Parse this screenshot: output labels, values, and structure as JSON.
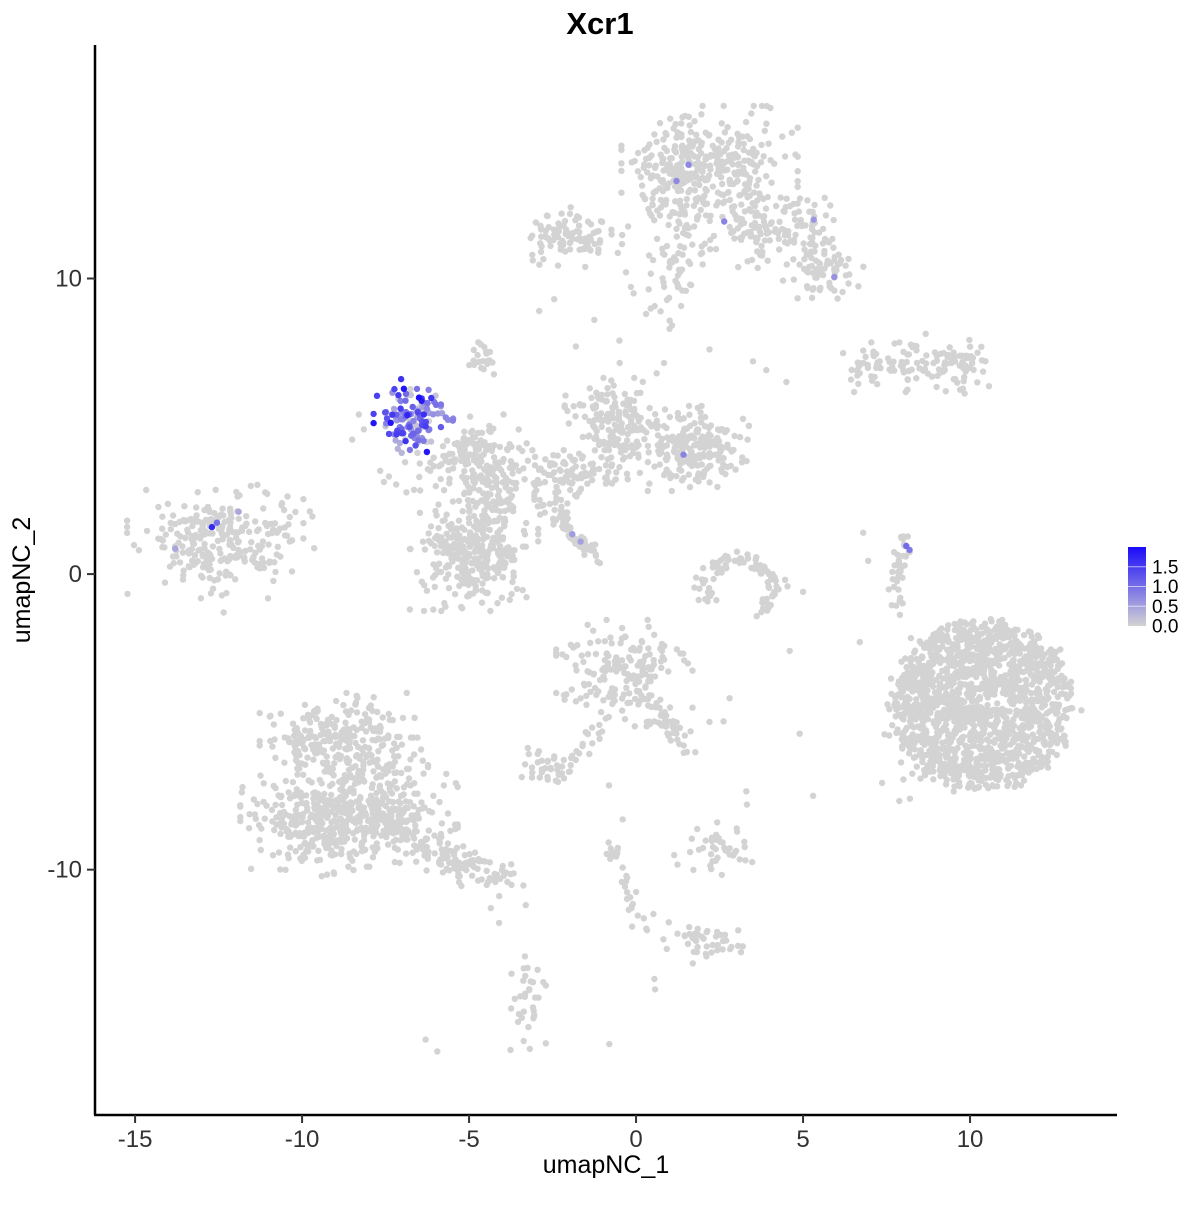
{
  "title": "Xcr1",
  "colors": {
    "background": "#FFFFFF",
    "point_low": "#D3D3D3",
    "point_high": "#1A0BFA",
    "axis_line": "#000000",
    "tick_text": "#333333",
    "title_text": "#000000"
  },
  "chart_data": {
    "type": "scatter",
    "title": "Xcr1",
    "xlabel": "umapNC_1",
    "ylabel": "umapNC_2",
    "x_ticks": [
      -15,
      -10,
      -5,
      0,
      5,
      10
    ],
    "y_ticks": [
      -10,
      0,
      10
    ],
    "xlim": [
      -16.2,
      14.4
    ],
    "ylim": [
      -18.3,
      17.9
    ],
    "grid": false,
    "point_radius_px": 3.2,
    "legend": {
      "position": "right",
      "ticks": [
        0.0,
        0.5,
        1.0,
        1.5
      ],
      "vmax": 2.0,
      "low_color": "#D3D3D3",
      "high_color": "#1A0BFA"
    },
    "grey_blobs": [
      {
        "name": "top-cluster-main",
        "cx": 2.2,
        "cy": 13.8,
        "sx": 1.1,
        "sy": 0.85,
        "n": 300
      },
      {
        "name": "top-cluster-left-edge",
        "cx": 1.0,
        "cy": 13.4,
        "sx": 0.45,
        "sy": 0.7,
        "n": 70
      },
      {
        "name": "top-cluster-right",
        "cx": 4.1,
        "cy": 11.8,
        "sx": 0.95,
        "sy": 0.6,
        "n": 130
      },
      {
        "name": "top-cluster-arm-se",
        "cx": 5.6,
        "cy": 10.3,
        "sx": 0.6,
        "sy": 0.55,
        "n": 70
      },
      {
        "name": "top-cluster-arm-down",
        "cx": 1.4,
        "cy": 11.2,
        "sx": 0.45,
        "sy": 0.9,
        "n": 55
      },
      {
        "name": "top-cluster-drips",
        "cx": 0.9,
        "cy": 9.4,
        "sx": 0.5,
        "sy": 0.5,
        "n": 18
      },
      {
        "name": "upper-left-elongated",
        "cx": -1.95,
        "cy": 11.4,
        "sx": 0.7,
        "sy": 0.42,
        "n": 95
      },
      {
        "name": "right-lobe-1",
        "cx": 7.35,
        "cy": 7.0,
        "sx": 0.55,
        "sy": 0.35,
        "n": 55
      },
      {
        "name": "right-lobe-2",
        "cx": 9.3,
        "cy": 7.05,
        "sx": 0.65,
        "sy": 0.45,
        "n": 80
      },
      {
        "name": "small-blob-above-middle",
        "cx": -4.55,
        "cy": 7.35,
        "sx": 0.28,
        "sy": 0.38,
        "n": 20
      },
      {
        "name": "middle-left-lobe",
        "cx": -4.6,
        "cy": 3.6,
        "sx": 0.65,
        "sy": 0.75,
        "n": 150
      },
      {
        "name": "middle-left-arm-down",
        "cx": -4.25,
        "cy": 2.25,
        "sx": 0.4,
        "sy": 0.6,
        "n": 60
      },
      {
        "name": "middle-bridge",
        "cx": -2.0,
        "cy": 3.35,
        "sx": 0.7,
        "sy": 0.35,
        "n": 85
      },
      {
        "name": "middle-bridge-low",
        "cx": -2.35,
        "cy": 2.25,
        "sx": 0.35,
        "sy": 0.25,
        "n": 18
      },
      {
        "name": "middle-fan",
        "cx": -0.65,
        "cy": 5.1,
        "sx": 0.62,
        "sy": 0.85,
        "n": 180
      },
      {
        "name": "middle-right-cluster",
        "cx": 1.7,
        "cy": 4.25,
        "sx": 0.7,
        "sy": 0.6,
        "n": 210
      },
      {
        "name": "center-left-round",
        "cx": -4.85,
        "cy": 0.55,
        "sx": 0.8,
        "sy": 0.75,
        "n": 300
      },
      {
        "name": "far-left-cluster",
        "cx": -12.6,
        "cy": 1.1,
        "sx": 1.1,
        "sy": 0.8,
        "n": 250
      },
      {
        "name": "far-left-arm",
        "cx": -10.4,
        "cy": 1.55,
        "sx": 0.5,
        "sy": 0.35,
        "n": 16
      },
      {
        "name": "bottom-left-top-lobe",
        "cx": -8.75,
        "cy": -5.7,
        "sx": 1.05,
        "sy": 0.7,
        "n": 260
      },
      {
        "name": "bottom-left-main-w",
        "cx": -9.45,
        "cy": -8.3,
        "sx": 1.0,
        "sy": 0.8,
        "n": 330
      },
      {
        "name": "bottom-left-main-e",
        "cx": -7.5,
        "cy": -8.1,
        "sx": 0.9,
        "sy": 0.75,
        "n": 250
      },
      {
        "name": "center-bottom-cluster",
        "cx": -0.35,
        "cy": -3.35,
        "sx": 0.85,
        "sy": 0.75,
        "n": 175
      },
      {
        "name": "small-blob-sw",
        "cx": -2.7,
        "cy": -6.55,
        "sx": 0.3,
        "sy": 0.28,
        "n": 28
      },
      {
        "name": "small-cluster-s1",
        "cx": 2.4,
        "cy": -9.35,
        "sx": 0.55,
        "sy": 0.35,
        "n": 40
      },
      {
        "name": "small-cluster-s2",
        "cx": 2.1,
        "cy": -12.4,
        "sx": 0.55,
        "sy": 0.33,
        "n": 45
      },
      {
        "name": "bottom-vertical-cluster",
        "cx": -3.35,
        "cy": -14.3,
        "sx": 0.27,
        "sy": 0.75,
        "n": 34
      },
      {
        "name": "br-disc-left-fringe",
        "cx": 8.35,
        "cy": -5.1,
        "sx": 0.55,
        "sy": 1.3,
        "n": 65
      },
      {
        "name": "grey-below-xcr1-cluster",
        "cx": -5.9,
        "cy": 3.95,
        "sx": 0.5,
        "sy": 0.3,
        "n": 16
      },
      {
        "name": "grey-sw-of-xcr1-cluster",
        "cx": -7.0,
        "cy": 3.1,
        "sx": 0.55,
        "sy": 0.45,
        "n": 10
      },
      {
        "name": "grey-inside-xcr1-cluster",
        "cx": -6.85,
        "cy": 5.3,
        "sx": 0.45,
        "sy": 0.5,
        "n": 14
      }
    ],
    "grey_segments": [
      {
        "name": "xcr1-grey-tail",
        "x1": -5.35,
        "y1": 4.55,
        "x2": -4.45,
        "y2": 4.35,
        "w": 0.18,
        "n": 20
      },
      {
        "name": "diagonal-streak",
        "x1": -2.45,
        "y1": 1.95,
        "x2": -1.1,
        "y2": 0.55,
        "w": 0.12,
        "n": 48
      },
      {
        "name": "bottom-left-tail",
        "x1": -6.45,
        "y1": -9.2,
        "x2": -3.95,
        "y2": -10.35,
        "w": 0.3,
        "n": 110
      },
      {
        "name": "center-bottom-arm",
        "x1": 0.55,
        "y1": -4.3,
        "x2": 1.3,
        "y2": -5.7,
        "w": 0.22,
        "n": 45
      },
      {
        "name": "center-bottom-trail",
        "x1": -1.0,
        "y1": -5.05,
        "x2": -2.35,
        "y2": -7.0,
        "w": 0.14,
        "n": 26
      },
      {
        "name": "chain-upper",
        "x1": -0.9,
        "y1": -9.0,
        "x2": -0.25,
        "y2": -10.6,
        "w": 0.13,
        "n": 16
      },
      {
        "name": "chain-lower",
        "x1": -0.25,
        "y1": -10.6,
        "x2": 0.2,
        "y2": -12.05,
        "w": 0.13,
        "n": 14
      },
      {
        "name": "right-streak",
        "x1": 8.15,
        "y1": 1.45,
        "x2": 7.75,
        "y2": -0.35,
        "w": 0.12,
        "n": 34
      },
      {
        "name": "right-streak-drips",
        "x1": 7.8,
        "y1": -0.5,
        "x2": 7.95,
        "y2": -1.3,
        "w": 0.1,
        "n": 6
      }
    ],
    "grey_ring": {
      "name": "horseshoe-cluster",
      "cx": 3.1,
      "cy": -0.45,
      "rx": 1.05,
      "ry": 0.95,
      "start_deg": -60,
      "span_deg": 280,
      "jitter": 0.16,
      "n": 90
    },
    "grey_disc": {
      "name": "bottom-right-disc",
      "cx": 10.4,
      "cy": -4.4,
      "rx": 2.7,
      "ry": 2.85,
      "n": 1500
    },
    "grey_singles": [
      [
        -2.9,
        8.9
      ],
      [
        -2.45,
        9.3
      ],
      [
        -1.25,
        8.6
      ],
      [
        -0.5,
        7.9
      ],
      [
        -1.8,
        7.7
      ],
      [
        1.0,
        8.3
      ],
      [
        0.3,
        8.8
      ],
      [
        3.5,
        7.2
      ],
      [
        4.5,
        6.5
      ],
      [
        3.9,
        6.9
      ],
      [
        2.2,
        7.6
      ],
      [
        -8.3,
        5.4
      ],
      [
        -8.15,
        4.9
      ],
      [
        -8.5,
        4.55
      ],
      [
        -7.4,
        3.3
      ],
      [
        -6.65,
        2.85
      ],
      [
        6.8,
        1.4
      ],
      [
        6.95,
        0.45
      ],
      [
        5.0,
        -0.6
      ],
      [
        4.6,
        -2.6
      ],
      [
        2.8,
        -4.2
      ],
      [
        2.2,
        -5.0
      ],
      [
        2.62,
        -4.98
      ],
      [
        4.9,
        -5.4
      ],
      [
        5.3,
        -7.5
      ],
      [
        6.7,
        -2.3
      ],
      [
        8.2,
        -7.6
      ],
      [
        -0.81,
        -7.15
      ],
      [
        -0.4,
        -8.3
      ],
      [
        3.3,
        -7.35
      ],
      [
        3.32,
        -7.8
      ],
      [
        2.43,
        -8.4
      ],
      [
        2.4,
        -8.82
      ],
      [
        0.52,
        -11.5
      ],
      [
        0.98,
        -11.78
      ],
      [
        0.55,
        -13.7
      ],
      [
        0.57,
        -14.05
      ],
      [
        -0.8,
        -15.9
      ],
      [
        -6.3,
        -15.75
      ],
      [
        -5.95,
        -16.15
      ],
      [
        -3.3,
        -11.2
      ],
      [
        -4.35,
        -11.3
      ],
      [
        -4.1,
        -11.8
      ],
      [
        -12.35,
        -1.3
      ],
      [
        -10.6,
        2.4
      ],
      [
        -10.2,
        2.1
      ]
    ],
    "expression_cluster": {
      "name": "xcr1-positive-cdc1-cluster",
      "cx": -6.85,
      "cy": 5.35,
      "sx": 0.42,
      "sy": 0.52,
      "n": 95,
      "v_mean": 0.85,
      "v_sd": 0.45,
      "v_min": 0.15,
      "v_max": 1.9
    },
    "expression_arm": {
      "x1": -6.35,
      "y1": 5.42,
      "x2": -5.35,
      "y2": 5.3,
      "w": 0.09,
      "n": 9,
      "v_lo": 0.5,
      "v_hi": 0.9
    },
    "expression_dark_points": [
      [
        -6.95,
        6.27,
        1.9
      ],
      [
        -6.5,
        5.97,
        1.95
      ],
      [
        -6.42,
        5.86,
        1.85
      ],
      [
        -7.05,
        5.6,
        1.5
      ],
      [
        -6.9,
        4.5,
        1.6
      ],
      [
        -7.15,
        4.85,
        1.4
      ],
      [
        -6.6,
        4.35,
        1.3
      ],
      [
        -6.3,
        5.0,
        1.5
      ]
    ],
    "expression_singles": [
      [
        1.57,
        13.85,
        0.75
      ],
      [
        1.21,
        13.3,
        0.75
      ],
      [
        2.64,
        11.93,
        0.8
      ],
      [
        5.32,
        11.99,
        0.6
      ],
      [
        5.94,
        10.05,
        0.65
      ],
      [
        1.42,
        4.04,
        0.8
      ],
      [
        -1.91,
        1.35,
        0.55
      ],
      [
        -1.66,
        1.1,
        0.5
      ],
      [
        8.09,
        0.95,
        1.05
      ],
      [
        8.19,
        0.82,
        0.9
      ],
      [
        -6.36,
        4.51,
        0.9
      ],
      [
        -12.7,
        1.59,
        1.7
      ],
      [
        -12.55,
        1.74,
        1.0
      ],
      [
        -11.9,
        2.11,
        0.45
      ],
      [
        -13.8,
        0.86,
        0.45
      ]
    ]
  }
}
